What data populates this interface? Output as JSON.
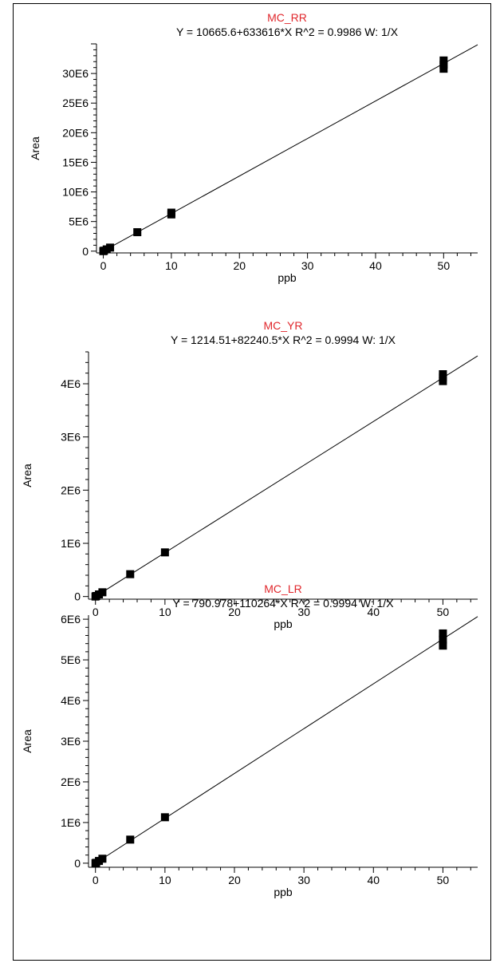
{
  "chart_data": [
    {
      "type": "scatter",
      "title": "MC_RR",
      "subtitle": "Y = 10665.6+633616*X   R^2 = 0.9986   W: 1/X",
      "xlabel": "ppb",
      "ylabel": "Area",
      "xlim": [
        -1,
        55
      ],
      "ylim": [
        -300000,
        35000000
      ],
      "xticks": [
        0,
        10,
        20,
        30,
        40,
        50
      ],
      "xtick_labels": [
        "0",
        "10",
        "20",
        "30",
        "40",
        "50"
      ],
      "yticks": [
        0,
        5000000,
        10000000,
        15000000,
        20000000,
        25000000,
        30000000
      ],
      "ytick_labels": [
        "0",
        "5E6",
        "10E6",
        "15E6",
        "20E6",
        "25E6",
        "30E6"
      ],
      "fit": {
        "intercept": 10665.6,
        "slope": 633616
      },
      "x": [
        0,
        0.1,
        0.5,
        1,
        5,
        10,
        10,
        50,
        50,
        50
      ],
      "y": [
        0,
        80000,
        300000,
        600000,
        3200000,
        6200000,
        6500000,
        30800000,
        31500000,
        32200000
      ]
    },
    {
      "type": "scatter",
      "title": "MC_YR",
      "subtitle": "Y = 1214.51+82240.5*X   R^2 = 0.9994   W: 1/X",
      "xlabel": "ppb",
      "ylabel": "Area",
      "xlim": [
        -1,
        55
      ],
      "ylim": [
        -50000,
        4600000
      ],
      "xticks": [
        0,
        10,
        20,
        30,
        40,
        50
      ],
      "xtick_labels": [
        "0",
        "10",
        "20",
        "30",
        "40",
        "50"
      ],
      "yticks": [
        0,
        1000000,
        2000000,
        3000000,
        4000000
      ],
      "ytick_labels": [
        "0",
        "1E6",
        "2E6",
        "3E6",
        "4E6"
      ],
      "fit": {
        "intercept": 1214.51,
        "slope": 82240.5
      },
      "x": [
        0,
        0.1,
        0.5,
        1,
        5,
        10,
        50,
        50,
        50
      ],
      "y": [
        0,
        10000,
        40000,
        80000,
        420000,
        830000,
        4050000,
        4120000,
        4180000
      ]
    },
    {
      "type": "scatter",
      "title": "MC_LR",
      "subtitle": "Y = 790.978+110264*X   R^2 = 0.9994   W: 1/X",
      "xlabel": "ppb",
      "ylabel": "Area",
      "xlim": [
        -1,
        55
      ],
      "ylim": [
        -100000,
        6100000
      ],
      "xticks": [
        0,
        10,
        20,
        30,
        40,
        50
      ],
      "xtick_labels": [
        "0",
        "10",
        "20",
        "30",
        "40",
        "50"
      ],
      "yticks": [
        0,
        1000000,
        2000000,
        3000000,
        4000000,
        5000000,
        6000000
      ],
      "ytick_labels": [
        "0",
        "1E6",
        "2E6",
        "3E6",
        "4E6",
        "5E6",
        "6E6"
      ],
      "fit": {
        "intercept": 790.978,
        "slope": 110264
      },
      "x": [
        0,
        0.1,
        0.5,
        1,
        5,
        10,
        50,
        50,
        50
      ],
      "y": [
        0,
        10000,
        55000,
        110000,
        580000,
        1130000,
        5350000,
        5500000,
        5650000
      ]
    }
  ]
}
